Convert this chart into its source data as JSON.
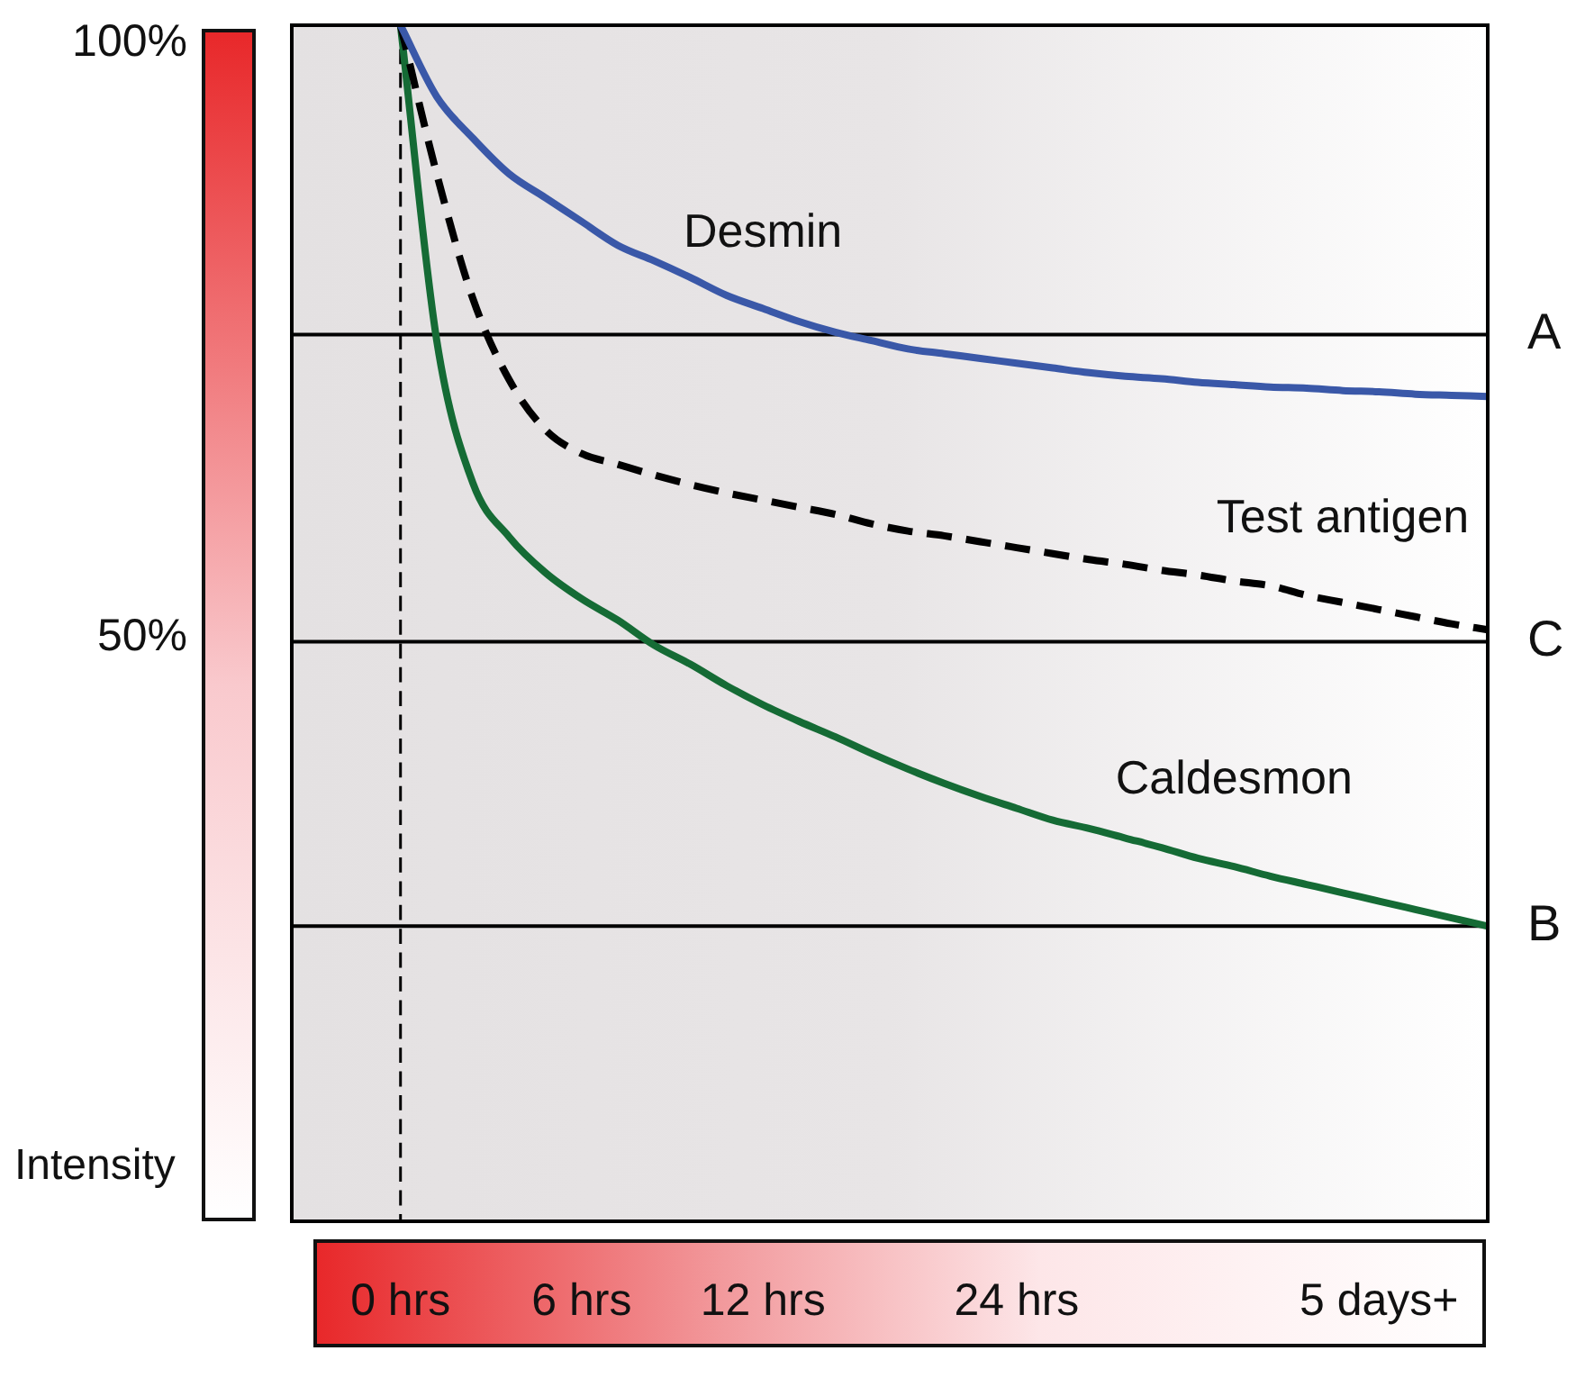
{
  "chart_data": {
    "type": "line",
    "ylabel": "Intensity",
    "categories": [
      null,
      null,
      null,
      "0 hrs",
      null,
      null,
      null,
      null,
      "6 hrs",
      null,
      null,
      null,
      null,
      "12 hrs",
      null,
      null,
      null,
      null,
      null,
      null,
      "24 hrs",
      null,
      null,
      null,
      null,
      null,
      null,
      null,
      null,
      null,
      "5 days+",
      null,
      null,
      null
    ],
    "ylim": [
      1,
      101.5
    ],
    "yticks": [
      {
        "value": 50,
        "label": "50%"
      },
      {
        "value": 100,
        "label": "100%"
      }
    ],
    "grid": false,
    "legend": false,
    "marker": "none",
    "series": [
      {
        "name": "Desmin",
        "color": "#3a58a8",
        "line_style": "solid",
        "values": [
          null,
          null,
          null,
          101.5,
          95.5,
          92,
          89,
          87,
          85,
          83,
          81.7,
          80.3,
          78.8,
          77.7,
          76.6,
          75.7,
          75,
          74.3,
          73.9,
          73.5,
          73.1,
          72.7,
          72.3,
          72,
          71.8,
          71.5,
          71.3,
          71.1,
          71,
          70.8,
          70.7,
          70.5,
          70.4,
          70.3
        ]
      },
      {
        "name": "Test antigen",
        "color": "#000000",
        "line_style": "dashed",
        "values": [
          null,
          null,
          null,
          101.5,
          89,
          78.5,
          71.7,
          67.5,
          65.5,
          64.6,
          63.7,
          62.9,
          62.2,
          61.6,
          61,
          60.4,
          59.6,
          59,
          58.6,
          58.1,
          57.6,
          57.1,
          56.6,
          56.2,
          55.7,
          55.3,
          54.8,
          54.4,
          53.6,
          53,
          52.4,
          51.8,
          51.2,
          50.7
        ]
      },
      {
        "name": "Caldesmon",
        "color": "#156b35",
        "line_style": "solid",
        "values": [
          null,
          null,
          null,
          101.5,
          75,
          63,
          58.5,
          55.5,
          53.3,
          51.5,
          49.4,
          47.8,
          46,
          44.4,
          43,
          41.7,
          40.3,
          39,
          37.8,
          36.7,
          35.7,
          34.7,
          34,
          33.2,
          32.4,
          31.5,
          30.8,
          30,
          29.3,
          28.6,
          27.9,
          27.2,
          26.5,
          25.8
        ]
      }
    ],
    "ref_lines": [
      {
        "axis": "y",
        "value": 75.5,
        "label": "A",
        "color": "#000000",
        "line_style": "solid"
      },
      {
        "axis": "y",
        "value": 49.7,
        "label": "C",
        "color": "#000000",
        "line_style": "solid"
      },
      {
        "axis": "y",
        "value": 25.8,
        "label": "B",
        "color": "#000000",
        "line_style": "solid"
      },
      {
        "axis": "x",
        "value": "0 hrs",
        "color": "#000000",
        "line_style": "dashed"
      }
    ]
  }
}
